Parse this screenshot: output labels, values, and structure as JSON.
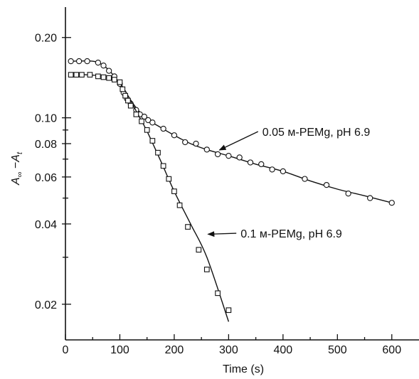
{
  "chart_data": {
    "type": "scatter",
    "xlabel": "Time (s)",
    "ylabel_parts": {
      "a": "A",
      "a_sub": "∞",
      "minus": " −",
      "b": "A",
      "b_sub": "t"
    },
    "xlim": [
      0,
      650
    ],
    "ylim": [
      0.0147,
      0.26
    ],
    "yscale": "log",
    "grid": false,
    "x_ticks": [
      0,
      100,
      200,
      300,
      400,
      500,
      600
    ],
    "y_major_ticks": [
      {
        "value": 0.02,
        "label": "0.02"
      },
      {
        "value": 0.04,
        "label": "0.04"
      },
      {
        "value": 0.06,
        "label": "0.06"
      },
      {
        "value": 0.08,
        "label": "0.08"
      },
      {
        "value": 0.1,
        "label": "0.10"
      },
      {
        "value": 0.2,
        "label": "0.20"
      }
    ],
    "y_minor_ticks": [
      0.03,
      0.05,
      0.07,
      0.09
    ],
    "series": [
      {
        "marker": "circle",
        "points": [
          [
            10,
            0.163
          ],
          [
            25,
            0.163
          ],
          [
            40,
            0.163
          ],
          [
            60,
            0.161
          ],
          [
            70,
            0.157
          ],
          [
            80,
            0.15
          ],
          [
            90,
            0.143
          ],
          [
            100,
            0.134
          ],
          [
            107,
            0.124
          ],
          [
            113,
            0.118
          ],
          [
            120,
            0.113
          ],
          [
            130,
            0.107
          ],
          [
            137,
            0.103
          ],
          [
            145,
            0.101
          ],
          [
            152,
            0.098
          ],
          [
            160,
            0.096
          ],
          [
            180,
            0.091
          ],
          [
            200,
            0.086
          ],
          [
            220,
            0.081
          ],
          [
            240,
            0.08
          ],
          [
            260,
            0.076
          ],
          [
            280,
            0.073
          ],
          [
            300,
            0.072
          ],
          [
            320,
            0.071
          ],
          [
            340,
            0.068
          ],
          [
            360,
            0.067
          ],
          [
            380,
            0.064
          ],
          [
            400,
            0.063
          ],
          [
            440,
            0.059
          ],
          [
            480,
            0.056
          ],
          [
            520,
            0.052
          ],
          [
            560,
            0.05
          ],
          [
            600,
            0.048
          ]
        ],
        "curve": [
          [
            10,
            0.163
          ],
          [
            50,
            0.163
          ],
          [
            70,
            0.157
          ],
          [
            90,
            0.143
          ],
          [
            110,
            0.125
          ],
          [
            130,
            0.109
          ],
          [
            150,
            0.099
          ],
          [
            175,
            0.092
          ],
          [
            200,
            0.086
          ],
          [
            230,
            0.08
          ],
          [
            260,
            0.076
          ],
          [
            300,
            0.072
          ],
          [
            350,
            0.067
          ],
          [
            400,
            0.063
          ],
          [
            450,
            0.058
          ],
          [
            500,
            0.054
          ],
          [
            550,
            0.051
          ],
          [
            600,
            0.048
          ]
        ]
      },
      {
        "marker": "square",
        "points": [
          [
            10,
            0.145
          ],
          [
            20,
            0.145
          ],
          [
            30,
            0.145
          ],
          [
            45,
            0.145
          ],
          [
            60,
            0.143
          ],
          [
            70,
            0.142
          ],
          [
            80,
            0.141
          ],
          [
            90,
            0.139
          ],
          [
            100,
            0.136
          ],
          [
            105,
            0.128
          ],
          [
            110,
            0.121
          ],
          [
            115,
            0.116
          ],
          [
            120,
            0.111
          ],
          [
            130,
            0.103
          ],
          [
            140,
            0.097
          ],
          [
            150,
            0.09
          ],
          [
            160,
            0.082
          ],
          [
            170,
            0.074
          ],
          [
            180,
            0.066
          ],
          [
            190,
            0.059
          ],
          [
            200,
            0.053
          ],
          [
            210,
            0.047
          ],
          [
            225,
            0.039
          ],
          [
            245,
            0.032
          ],
          [
            260,
            0.027
          ],
          [
            280,
            0.022
          ],
          [
            300,
            0.019
          ]
        ],
        "curve": [
          [
            10,
            0.146
          ],
          [
            60,
            0.144
          ],
          [
            85,
            0.141
          ],
          [
            100,
            0.135
          ],
          [
            115,
            0.121
          ],
          [
            130,
            0.106
          ],
          [
            150,
            0.089
          ],
          [
            175,
            0.069
          ],
          [
            200,
            0.053
          ],
          [
            230,
            0.04
          ],
          [
            260,
            0.03
          ],
          [
            300,
            0.0172
          ]
        ]
      }
    ],
    "annotations": [
      {
        "text": "0.05 м-PEMg, pH 6.9",
        "text_x": 362,
        "text_y": 0.0888,
        "arrow_to": [
          283,
          0.0757
        ]
      },
      {
        "text": "0.1 м-PEMg, pH 6.9",
        "text_x": 322,
        "text_y": 0.0369,
        "arrow_to": [
          262,
          0.0366
        ]
      }
    ]
  }
}
